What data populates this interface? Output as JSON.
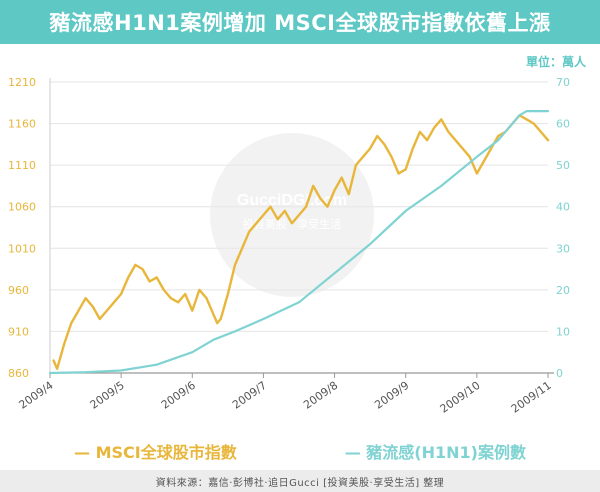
{
  "title": "豬流感H1N1案例增加  MSCI全球股市指數依舊上漲",
  "unit_label": "單位：萬人",
  "watermark": {
    "name": "GucciDGI.com",
    "tagline": "投資美股 · 享受生活"
  },
  "legend": {
    "msci": "— MSCI全球股市指數",
    "h1n1": "— 豬流感(H1N1)案例數"
  },
  "source": "資料來源：嘉信·彭博社·追日Gucci [投資美股·享受生活] 整理",
  "chart_data": {
    "type": "line",
    "x_ticks": [
      "2009/4",
      "2009/5",
      "2009/6",
      "2009/7",
      "2009/8",
      "2009/9",
      "2009/10",
      "2009/11"
    ],
    "x_range": [
      0,
      7
    ],
    "y_left": {
      "min": 860,
      "max": 1210,
      "ticks": [
        860,
        910,
        960,
        1010,
        1060,
        1110,
        1160,
        1210
      ],
      "color": "#e8b63a"
    },
    "y_right": {
      "min": 0,
      "max": 70,
      "ticks": [
        0,
        10,
        20,
        30,
        40,
        50,
        60,
        70
      ],
      "color": "#7fd3d2"
    },
    "grid": "horizontal",
    "series": [
      {
        "name": "MSCI全球股市指數",
        "axis": "left",
        "color": "#e8b63a",
        "x": [
          0.05,
          0.1,
          0.2,
          0.3,
          0.4,
          0.5,
          0.55,
          0.6,
          0.7,
          0.8,
          0.9,
          1.0,
          1.1,
          1.2,
          1.3,
          1.4,
          1.5,
          1.6,
          1.7,
          1.8,
          1.9,
          2.0,
          2.1,
          2.2,
          2.3,
          2.35,
          2.4,
          2.5,
          2.6,
          2.7,
          2.8,
          2.9,
          3.0,
          3.1,
          3.2,
          3.3,
          3.4,
          3.5,
          3.6,
          3.7,
          3.8,
          3.9,
          4.0,
          4.1,
          4.2,
          4.3,
          4.4,
          4.5,
          4.6,
          4.7,
          4.8,
          4.9,
          5.0,
          5.1,
          5.2,
          5.3,
          5.4,
          5.5,
          5.6,
          5.7,
          5.8,
          5.9,
          6.0,
          6.1,
          6.2,
          6.3,
          6.4,
          6.5,
          6.6,
          6.7,
          6.8,
          6.9,
          7.0
        ],
        "y": [
          875,
          865,
          895,
          920,
          935,
          950,
          945,
          940,
          925,
          935,
          945,
          955,
          975,
          990,
          985,
          970,
          975,
          960,
          950,
          945,
          955,
          935,
          960,
          950,
          930,
          920,
          925,
          955,
          990,
          1010,
          1030,
          1040,
          1050,
          1060,
          1045,
          1055,
          1040,
          1050,
          1060,
          1085,
          1070,
          1060,
          1080,
          1095,
          1075,
          1110,
          1120,
          1130,
          1145,
          1135,
          1120,
          1100,
          1105,
          1130,
          1150,
          1140,
          1155,
          1165,
          1150,
          1140,
          1130,
          1120,
          1100,
          1115,
          1130,
          1145,
          1150,
          1160,
          1170,
          1165,
          1160,
          1150,
          1140
        ]
      },
      {
        "name": "豬流感(H1N1)案例數",
        "axis": "right",
        "color": "#7fd3d2",
        "x": [
          0.0,
          0.5,
          1.0,
          1.5,
          2.0,
          2.3,
          2.6,
          3.0,
          3.5,
          4.0,
          4.5,
          5.0,
          5.5,
          6.0,
          6.3,
          6.5,
          6.6,
          6.7,
          6.8,
          7.0
        ],
        "y": [
          0,
          0.2,
          0.6,
          2,
          5,
          8,
          10,
          13,
          17,
          24,
          31,
          39,
          45,
          52,
          56,
          60,
          62,
          63,
          63,
          63
        ]
      }
    ]
  }
}
